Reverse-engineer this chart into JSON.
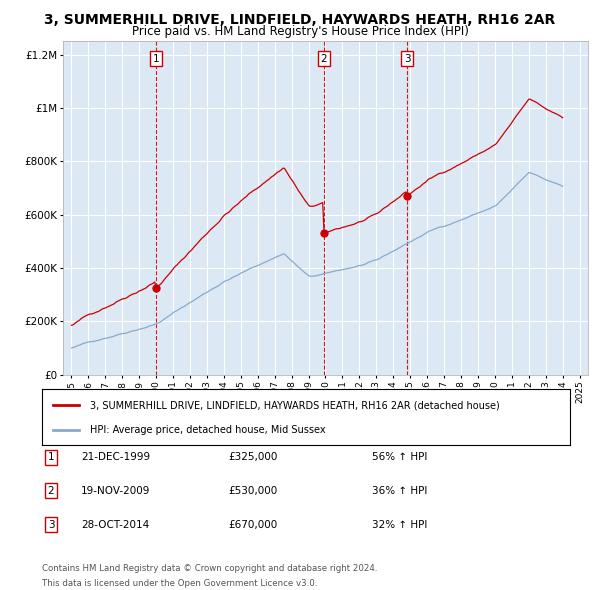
{
  "title": "3, SUMMERHILL DRIVE, LINDFIELD, HAYWARDS HEATH, RH16 2AR",
  "subtitle": "Price paid vs. HM Land Registry's House Price Index (HPI)",
  "title_fontsize": 10,
  "subtitle_fontsize": 8.5,
  "plot_bg_color": "#dce9f5",
  "line_color_red": "#cc0000",
  "line_color_blue": "#88aacc",
  "purchase_dates_dec": [
    1999.97,
    2009.89,
    2014.82
  ],
  "purchase_prices": [
    325000,
    530000,
    670000
  ],
  "purchase_labels": [
    "1",
    "2",
    "3"
  ],
  "purchase_label_dates": [
    "21-DEC-1999",
    "19-NOV-2009",
    "28-OCT-2014"
  ],
  "purchase_label_prices": [
    "£325,000",
    "£530,000",
    "£670,000"
  ],
  "purchase_label_hpi": [
    "56% ↑ HPI",
    "36% ↑ HPI",
    "32% ↑ HPI"
  ],
  "ylim": [
    0,
    1250000
  ],
  "xlim_start": 1994.5,
  "xlim_end": 2025.5,
  "yticks": [
    0,
    200000,
    400000,
    600000,
    800000,
    1000000,
    1200000
  ],
  "footer1": "Contains HM Land Registry data © Crown copyright and database right 2024.",
  "footer2": "This data is licensed under the Open Government Licence v3.0.",
  "legend_label_red": "3, SUMMERHILL DRIVE, LINDFIELD, HAYWARDS HEATH, RH16 2AR (detached house)",
  "legend_label_blue": "HPI: Average price, detached house, Mid Sussex"
}
